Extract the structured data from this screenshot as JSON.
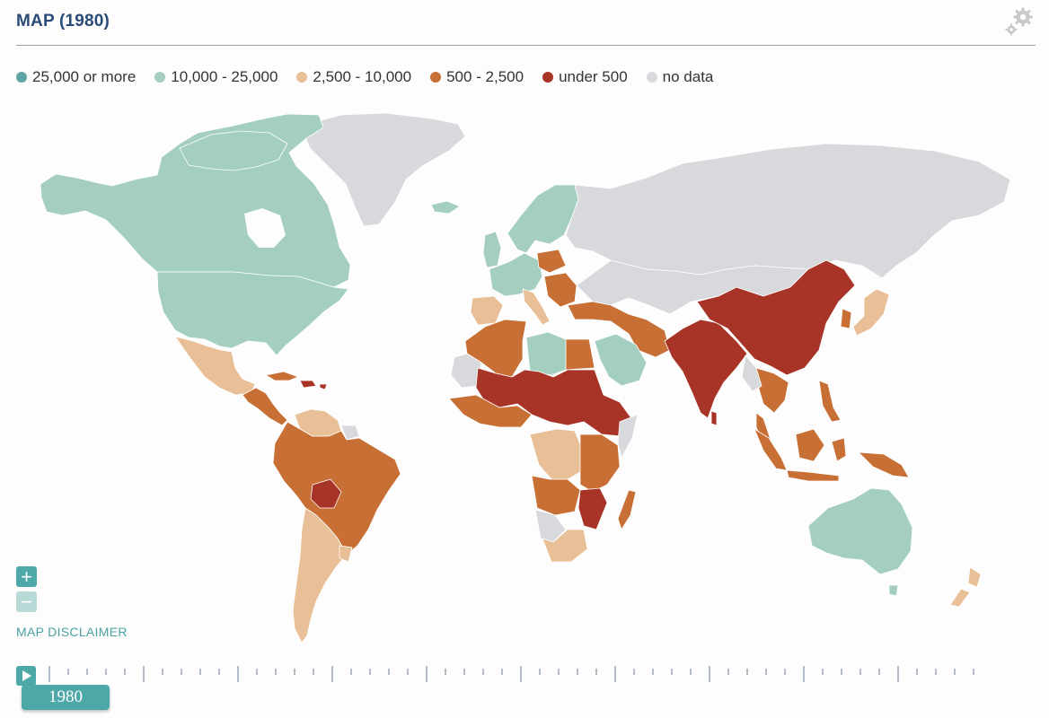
{
  "header": {
    "title": "MAP (1980)"
  },
  "icons": {
    "settings": "gears-icon",
    "play": "play-icon",
    "zoom_in": "plus-icon",
    "zoom_out": "minus-icon"
  },
  "legend": [
    {
      "label": "25,000 or more",
      "color": "#5fa4a4"
    },
    {
      "label": "10,000 - 25,000",
      "color": "#a4cfc0"
    },
    {
      "label": "2,500 - 10,000",
      "color": "#e8bf96"
    },
    {
      "label": "500 - 2,500",
      "color": "#c76f34"
    },
    {
      "label": "under 500",
      "color": "#a83427"
    },
    {
      "label": "no data",
      "color": "#d8d9dc"
    }
  ],
  "map": {
    "regions": [
      {
        "name": "Canada & Alaska",
        "class": "10,000 - 25,000"
      },
      {
        "name": "United States",
        "class": "10,000 - 25,000"
      },
      {
        "name": "Greenland",
        "class": "no data"
      },
      {
        "name": "Mexico",
        "class": "2,500 - 10,000"
      },
      {
        "name": "Central America",
        "class": "500 - 2,500"
      },
      {
        "name": "Brazil / Peru / Colombia",
        "class": "500 - 2,500"
      },
      {
        "name": "Venezuela",
        "class": "2,500 - 10,000"
      },
      {
        "name": "Argentina / Chile",
        "class": "2,500 - 10,000"
      },
      {
        "name": "Russia",
        "class": "no data"
      },
      {
        "name": "Western Europe",
        "class": "10,000 - 25,000"
      },
      {
        "name": "Scandinavia",
        "class": "10,000 - 25,000"
      },
      {
        "name": "Poland / Eastern Europe",
        "class": "500 - 2,500"
      },
      {
        "name": "Iberia",
        "class": "2,500 - 10,000"
      },
      {
        "name": "North Africa",
        "class": "500 - 2,500"
      },
      {
        "name": "Libya",
        "class": "10,000 - 25,000"
      },
      {
        "name": "Saudi Arabia",
        "class": "10,000 - 25,000"
      },
      {
        "name": "Sahel (Mali, Niger, Chad, Sudan, Ethiopia)",
        "class": "under 500"
      },
      {
        "name": "Central Africa",
        "class": "2,500 - 10,000"
      },
      {
        "name": "East Africa",
        "class": "500 - 2,500"
      },
      {
        "name": "Mozambique",
        "class": "under 500"
      },
      {
        "name": "South Africa",
        "class": "2,500 - 10,000"
      },
      {
        "name": "Madagascar",
        "class": "500 - 2,500"
      },
      {
        "name": "Iran / Turkey",
        "class": "500 - 2,500"
      },
      {
        "name": "China",
        "class": "under 500"
      },
      {
        "name": "India",
        "class": "under 500"
      },
      {
        "name": "Southeast Asia / Indonesia",
        "class": "500 - 2,500"
      },
      {
        "name": "Japan",
        "class": "2,500 - 10,000"
      },
      {
        "name": "Australia",
        "class": "10,000 - 25,000"
      },
      {
        "name": "New Zealand",
        "class": "2,500 - 10,000"
      }
    ]
  },
  "controls": {
    "zoom_in": "+",
    "zoom_out": "−",
    "disclaimer": "MAP DISCLAIMER"
  },
  "timeline": {
    "year": "1980"
  }
}
